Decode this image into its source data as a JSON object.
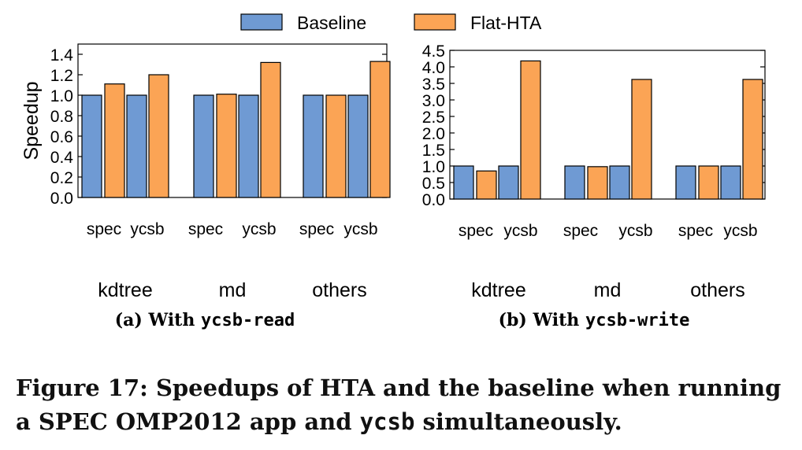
{
  "legend": [
    {
      "name": "Baseline",
      "color": "#6f9ad3"
    },
    {
      "name": "Flat-HTA",
      "color": "#fba455"
    }
  ],
  "caption": {
    "prefix": "Figure 17: Speedups of HTA and the baseline when running a SPEC OMP2012 app and ",
    "code": "ycsb",
    "suffix": " simultaneously."
  },
  "chart_data": [
    {
      "type": "bar",
      "subcaption_prefix": "(a) With ",
      "subcaption_code": "ycsb-read",
      "ylabel": "Speedup",
      "ylim": [
        0,
        1.5
      ],
      "yticks": [
        "0.0",
        "0.2",
        "0.4",
        "0.6",
        "0.8",
        "1.0",
        "1.2",
        "1.4"
      ],
      "groups": [
        "kdtree",
        "md",
        "others"
      ],
      "categories": [
        "spec",
        "ycsb"
      ],
      "series": [
        {
          "name": "Baseline",
          "values": [
            [
              1.0,
              1.0
            ],
            [
              1.0,
              1.0
            ],
            [
              1.0,
              1.0
            ]
          ]
        },
        {
          "name": "Flat-HTA",
          "values": [
            [
              1.11,
              1.2
            ],
            [
              1.01,
              1.32
            ],
            [
              1.0,
              1.33
            ]
          ]
        }
      ],
      "grid": false
    },
    {
      "type": "bar",
      "subcaption_prefix": "(b) With ",
      "subcaption_code": "ycsb-write",
      "ylabel": "",
      "ylim": [
        0,
        4.5
      ],
      "yticks": [
        "0.0",
        "0.5",
        "1.0",
        "1.5",
        "2.0",
        "2.5",
        "3.0",
        "3.5",
        "4.0",
        "4.5"
      ],
      "groups": [
        "kdtree",
        "md",
        "others"
      ],
      "categories": [
        "spec",
        "ycsb"
      ],
      "series": [
        {
          "name": "Baseline",
          "values": [
            [
              1.0,
              1.0
            ],
            [
              1.0,
              1.0
            ],
            [
              1.0,
              1.0
            ]
          ]
        },
        {
          "name": "Flat-HTA",
          "values": [
            [
              0.85,
              4.18
            ],
            [
              0.98,
              3.62
            ],
            [
              1.0,
              3.62
            ]
          ]
        }
      ],
      "grid": false
    }
  ]
}
